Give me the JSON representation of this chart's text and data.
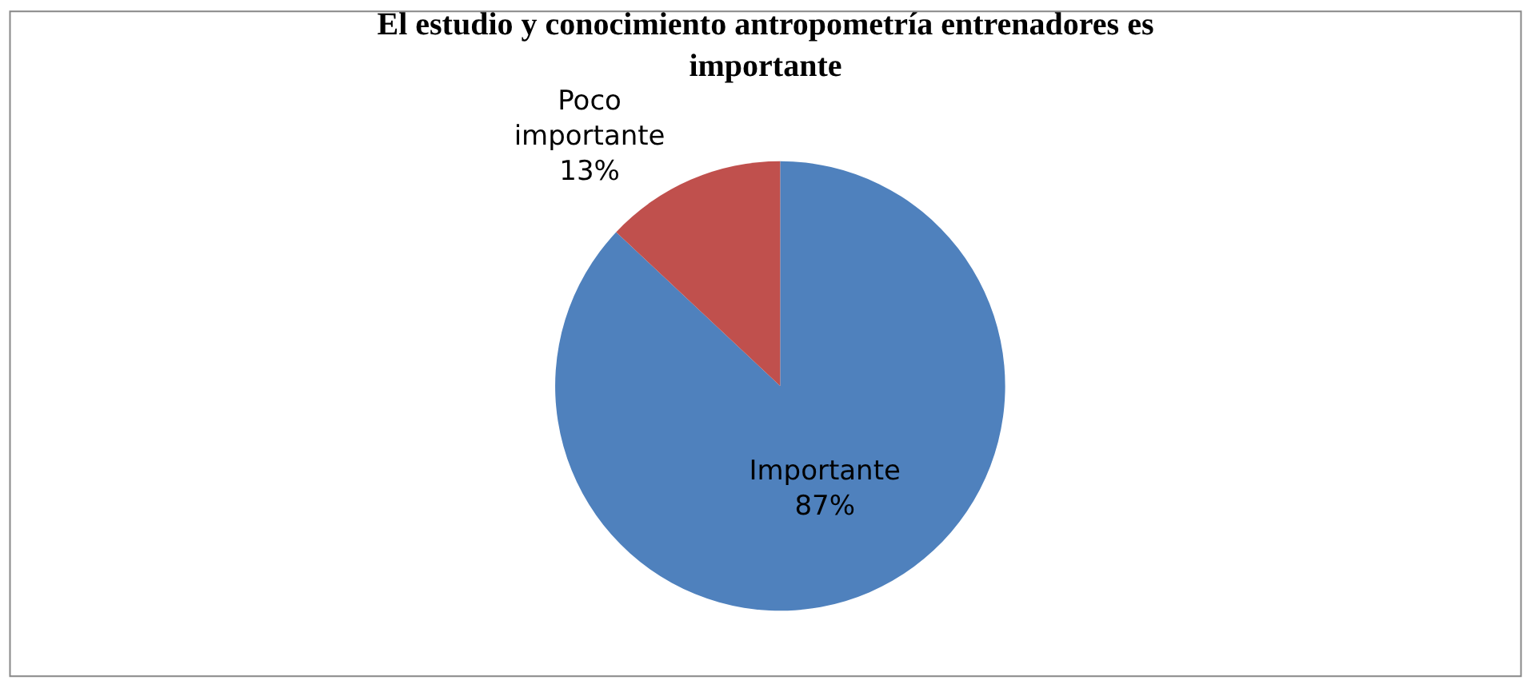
{
  "chart_data": {
    "type": "pie",
    "title": "El estudio y conocimiento antropometría entrenadores es importante",
    "categories": [
      "Importante",
      "Poco importante"
    ],
    "values": [
      87,
      13
    ],
    "value_labels": [
      "87%",
      "13%"
    ],
    "colors": [
      "#4f81bd",
      "#c0504d"
    ],
    "legend": false
  }
}
